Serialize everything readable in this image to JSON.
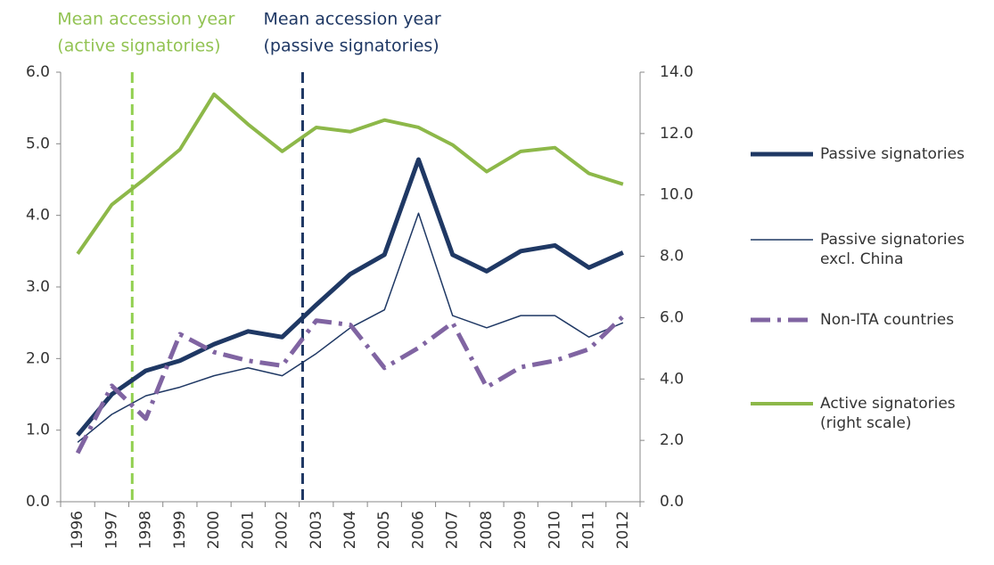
{
  "chart_data": {
    "type": "line",
    "categories": [
      "1996",
      "1997",
      "1998",
      "1999",
      "2000",
      "2001",
      "2002",
      "2003",
      "2004",
      "2005",
      "2006",
      "2007",
      "2008",
      "2009",
      "2010",
      "2011",
      "2012"
    ],
    "series": [
      {
        "name": "Passive signatories",
        "color": "#1f3864",
        "width": 5,
        "dash": "none",
        "values": [
          0.93,
          1.5,
          1.83,
          1.97,
          2.2,
          2.38,
          2.3,
          2.75,
          3.18,
          3.45,
          4.78,
          3.45,
          3.22,
          3.5,
          3.58,
          3.27,
          3.48
        ]
      },
      {
        "name": "Passive signatories excl. China",
        "color": "#1f3864",
        "width": 1.5,
        "dash": "none",
        "values": [
          0.83,
          1.22,
          1.48,
          1.6,
          1.76,
          1.87,
          1.76,
          2.07,
          2.43,
          2.68,
          4.03,
          2.6,
          2.43,
          2.6,
          2.6,
          2.3,
          2.5
        ]
      },
      {
        "name": "Non-ITA countries",
        "color": "#8064a2",
        "width": 5,
        "dash": "22 8 4 8",
        "values": [
          0.68,
          1.62,
          1.16,
          2.34,
          2.09,
          1.97,
          1.9,
          2.53,
          2.47,
          1.87,
          2.15,
          2.5,
          1.6,
          1.88,
          1.97,
          2.13,
          2.59
        ]
      },
      {
        "name": "Active signatories (right scale)",
        "color": "#8db849",
        "width": 4,
        "dash": "none",
        "axis": "y2",
        "values": [
          8.08,
          9.68,
          10.55,
          11.48,
          13.28,
          12.3,
          11.42,
          12.2,
          12.06,
          12.44,
          12.2,
          11.63,
          10.76,
          11.42,
          11.54,
          10.7,
          10.35
        ]
      }
    ],
    "ylim": [
      0,
      6
    ],
    "yticks": [
      {
        "value": 0,
        "label": "0.0"
      },
      {
        "value": 1,
        "label": "1.0"
      },
      {
        "value": 2,
        "label": "2.0"
      },
      {
        "value": 3,
        "label": "3.0"
      },
      {
        "value": 4,
        "label": "4.0"
      },
      {
        "value": 5,
        "label": "5.0"
      },
      {
        "value": 6,
        "label": "6.0"
      }
    ],
    "y2lim": [
      0,
      14
    ],
    "y2ticks": [
      {
        "value": 0,
        "label": "0.0"
      },
      {
        "value": 2,
        "label": "2.0"
      },
      {
        "value": 4,
        "label": "4.0"
      },
      {
        "value": 6,
        "label": "6.0"
      },
      {
        "value": 8,
        "label": "8.0"
      },
      {
        "value": 10,
        "label": "10.0"
      },
      {
        "value": 12,
        "label": "12.0"
      },
      {
        "value": 14,
        "label": "14.0"
      }
    ],
    "annotations": [
      {
        "text": [
          "Mean accession year",
          "(active signatories)"
        ],
        "x": 1997.6,
        "color": "#92c353",
        "line_color": "#92d050"
      },
      {
        "text": [
          "Mean accession year",
          "(passive signatories)"
        ],
        "x": 2002.6,
        "color": "#1f3864",
        "line_color": "#1f3864"
      }
    ]
  }
}
